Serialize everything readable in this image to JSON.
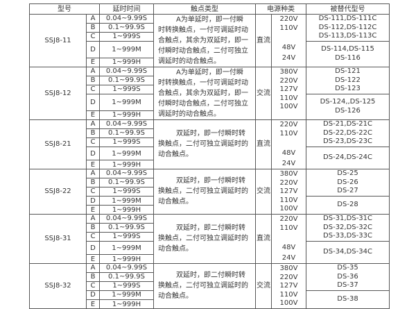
{
  "header": {
    "model": "型号",
    "delay": "延时时间",
    "contact": "触点类型",
    "power": "电源种类",
    "replacement": "被替代型号"
  },
  "groups": [
    {
      "model": "SSJ8-11",
      "rows": [
        {
          "letter": "A",
          "delay": "0.04~9.99S"
        },
        {
          "letter": "B",
          "delay": "0.1~99.9S"
        },
        {
          "letter": "C",
          "delay": "1~999S"
        },
        {
          "letter": "D",
          "delay": "1~999M"
        },
        {
          "letter": "E",
          "delay": "1~999H"
        }
      ],
      "contact": "A为单延时，即一付瞬时转换触点，一付可调延时动合触点，其余为双延时，即一付瞬时动合触点，二付可独立调延时的动合触点。",
      "power_type": "直流",
      "voltages": [
        "220V",
        "110V",
        "48V",
        "24V"
      ],
      "replacements": [
        [
          "DS-111,DS-111C",
          "DS-112,DS-112C",
          "DS-113,DS-113C"
        ],
        [
          "DS-114,DS-115",
          "DS-116"
        ]
      ]
    },
    {
      "model": "SSJ8-12",
      "rows": [
        {
          "letter": "A",
          "delay": "0.04~9.99S"
        },
        {
          "letter": "B",
          "delay": "0.1~99.9S"
        },
        {
          "letter": "C",
          "delay": "1~999S"
        },
        {
          "letter": "D",
          "delay": "1~999M"
        },
        {
          "letter": "E",
          "delay": "1~999H"
        }
      ],
      "contact": "A为单延时，即一付瞬时转换触点，一付可调延时动合触点，其余为双延时，即一付瞬时动合触点，二付可独立调延时的动合触点。",
      "power_type": "交流",
      "voltages": [
        "380V",
        "220V",
        "127V",
        "110V",
        "100V"
      ],
      "replacements": [
        [
          "DS-121",
          "DS-122",
          "DS-123"
        ],
        [
          "DS-124,,DS-125",
          "DS-126"
        ]
      ]
    },
    {
      "model": "SSJ8-21",
      "rows": [
        {
          "letter": "A",
          "delay": "0.04~9.99S"
        },
        {
          "letter": "B",
          "delay": "0.1~99.9S"
        },
        {
          "letter": "C",
          "delay": "1~999S"
        },
        {
          "letter": "D",
          "delay": "1~999M"
        },
        {
          "letter": "E",
          "delay": "1~999H"
        }
      ],
      "contact": "双延时，即一付瞬时转换触点，二付可独立调延时的动合触点。",
      "power_type": "直流",
      "voltages": [
        "220V",
        "110V",
        "48V",
        "24V"
      ],
      "replacements": [
        [
          "DS-21,DS-21C",
          "DS-22,DS-22C",
          "DS-23,DS-23C"
        ],
        [
          "DS-24,DS-24C"
        ]
      ]
    },
    {
      "model": "SSJ8-22",
      "rows": [
        {
          "letter": "A",
          "delay": "0.04~9.99S"
        },
        {
          "letter": "B",
          "delay": "0.1~99.9S"
        },
        {
          "letter": "C",
          "delay": "1~999S"
        },
        {
          "letter": "D",
          "delay": "1~999M"
        },
        {
          "letter": "E",
          "delay": "1~999H"
        }
      ],
      "contact": "双延时，即一付瞬时转换触点，二付可独立调延时的动合触点。",
      "power_type": "交流",
      "voltages": [
        "380V",
        "220V",
        "127V",
        "110V",
        "100V"
      ],
      "replacements": [
        [
          "DS-25",
          "DS-26",
          "DS-27"
        ],
        [
          "DS-28"
        ]
      ]
    },
    {
      "model": "SSJ8-31",
      "rows": [
        {
          "letter": "A",
          "delay": "0.04~9.99S"
        },
        {
          "letter": "B",
          "delay": "0.1~99.9S"
        },
        {
          "letter": "C",
          "delay": "1~999S"
        },
        {
          "letter": "D",
          "delay": "1~999M"
        },
        {
          "letter": "E",
          "delay": "1~999H"
        }
      ],
      "contact": "双延时，即二付瞬时转换触点，二付可独立调延时的动合触点。",
      "power_type": "直流",
      "voltages": [
        "220V",
        "110V",
        "48V",
        "24V"
      ],
      "replacements": [
        [
          "DS-31,DS-31C",
          "DS-32,DS-32C",
          "DS-33,DS-33C"
        ],
        [
          "DS-34,DS-34C"
        ]
      ]
    },
    {
      "model": "SSJ8-32",
      "rows": [
        {
          "letter": "A",
          "delay": "0.04~9.99S"
        },
        {
          "letter": "B",
          "delay": "0.1~99.9S"
        },
        {
          "letter": "C",
          "delay": "1~999S"
        },
        {
          "letter": "D",
          "delay": "1~999M"
        },
        {
          "letter": "E",
          "delay": "1~999H"
        }
      ],
      "contact": "双延时，即二付瞬时转换触点，二付可独立调延时的动合触点。",
      "power_type": "交流",
      "voltages": [
        "380V",
        "220V",
        "127V",
        "110V",
        "100V"
      ],
      "replacements": [
        [
          "DS-35",
          "DS-36",
          "DS-37"
        ],
        [
          "DS-38"
        ]
      ]
    }
  ]
}
